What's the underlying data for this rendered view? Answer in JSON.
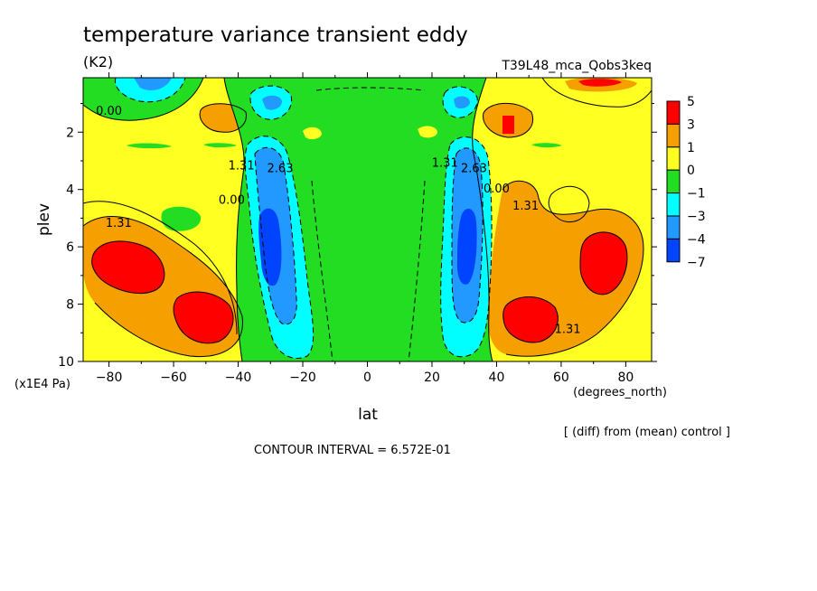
{
  "chart_data": {
    "type": "heatmap",
    "title": "temperature variance transient eddy",
    "units": "(K2)",
    "experiment": "T39L48_mca_Qobs3keq",
    "xlabel": "lat",
    "x_units": "(degrees_north)",
    "ylabel": "plev",
    "y_units": "(x1E4 Pa)",
    "xlim": [
      -88,
      88
    ],
    "ylim": [
      10,
      0.1
    ],
    "x_ticks": [
      {
        "value": -80,
        "label": "−80"
      },
      {
        "value": -60,
        "label": "−60"
      },
      {
        "value": -40,
        "label": "−40"
      },
      {
        "value": -20,
        "label": "−20"
      },
      {
        "value": 0,
        "label": "0"
      },
      {
        "value": 20,
        "label": "20"
      },
      {
        "value": 40,
        "label": "40"
      },
      {
        "value": 60,
        "label": "60"
      },
      {
        "value": 80,
        "label": "80"
      }
    ],
    "y_ticks": [
      {
        "value": 2,
        "label": "2"
      },
      {
        "value": 4,
        "label": "4"
      },
      {
        "value": 6,
        "label": "6"
      },
      {
        "value": 8,
        "label": "8"
      },
      {
        "value": 10,
        "label": "10"
      }
    ],
    "colorbar": {
      "levels": [
        {
          "label": "5",
          "color": "#ff0000"
        },
        {
          "label": "3",
          "color": "#f5a000"
        },
        {
          "label": "1",
          "color": "#ffff22"
        },
        {
          "label": "0",
          "color": "#22dd22"
        },
        {
          "label": "−1",
          "color": "#00ffff"
        },
        {
          "label": "−3",
          "color": "#2299ff"
        },
        {
          "label": "−4",
          "color": "#0044ff"
        },
        {
          "label": "−7",
          "color": ""
        }
      ]
    },
    "contour_labels": [
      {
        "text": "0.00",
        "lat": -80,
        "plev": 1.4
      },
      {
        "text": "1.31",
        "lat": -77,
        "plev": 5.3
      },
      {
        "text": "0.00",
        "lat": -42,
        "plev": 4.5
      },
      {
        "text": "1.31",
        "lat": -39,
        "plev": 3.3
      },
      {
        "text": "2.63",
        "lat": -27,
        "plev": 3.4
      },
      {
        "text": "1.31",
        "lat": 24,
        "plev": 3.2
      },
      {
        "text": "2.63",
        "lat": 33,
        "plev": 3.4
      },
      {
        "text": "0.00",
        "lat": 40,
        "plev": 4.1
      },
      {
        "text": "1.31",
        "lat": 49,
        "plev": 4.7
      },
      {
        "text": "1.31",
        "lat": 62,
        "plev": 9.0
      }
    ],
    "footer_note": "[ (diff) from (mean) control ]",
    "contour_interval_text": "CONTOUR INTERVAL = 6.572E-01"
  }
}
